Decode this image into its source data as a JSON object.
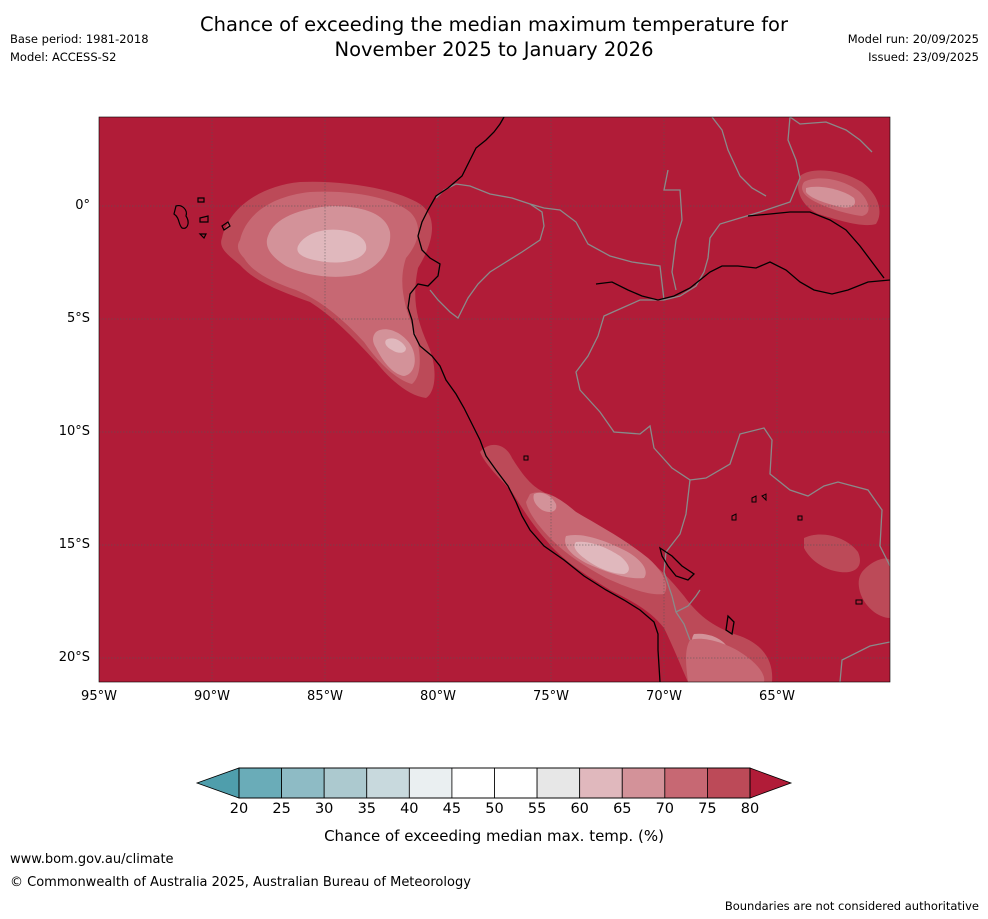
{
  "title_line1": "Chance of exceeding the median maximum temperature for",
  "title_line2": "November 2025 to January 2026",
  "meta_left": {
    "base_period": "Base period: 1981-2018",
    "model": "Model: ACCESS-S2"
  },
  "meta_right": {
    "model_run": "Model run: 20/09/2025",
    "issued": "Issued: 23/09/2025"
  },
  "map": {
    "lat_ticks": [
      "0°",
      "5°S",
      "10°S",
      "15°S",
      "20°S"
    ],
    "lon_ticks": [
      "95°W",
      "90°W",
      "85°W",
      "80°W",
      "75°W",
      "70°W",
      "65°W"
    ],
    "background_color": "#b11c38"
  },
  "colorbar": {
    "label": "Chance of exceeding median max. temp. (%)",
    "ticks": [
      "20",
      "25",
      "30",
      "35",
      "40",
      "45",
      "50",
      "55",
      "60",
      "65",
      "70",
      "75",
      "80"
    ],
    "colors": [
      "#6aacb8",
      "#8ebbc5",
      "#acc9cf",
      "#c8d9dd",
      "#eaeff1",
      "#ffffff",
      "#ffffff",
      "#e7e7e7",
      "#e0b8bd",
      "#d39299",
      "#c76873",
      "#bc4a58"
    ],
    "low_extend_color": "#4f9eac",
    "high_extend_color": "#b11c38"
  },
  "footer": {
    "url": "www.bom.gov.au/climate",
    "copyright": "© Commonwealth of Australia 2025, Australian Bureau of Meteorology",
    "note": "Boundaries are not considered authoritative"
  }
}
